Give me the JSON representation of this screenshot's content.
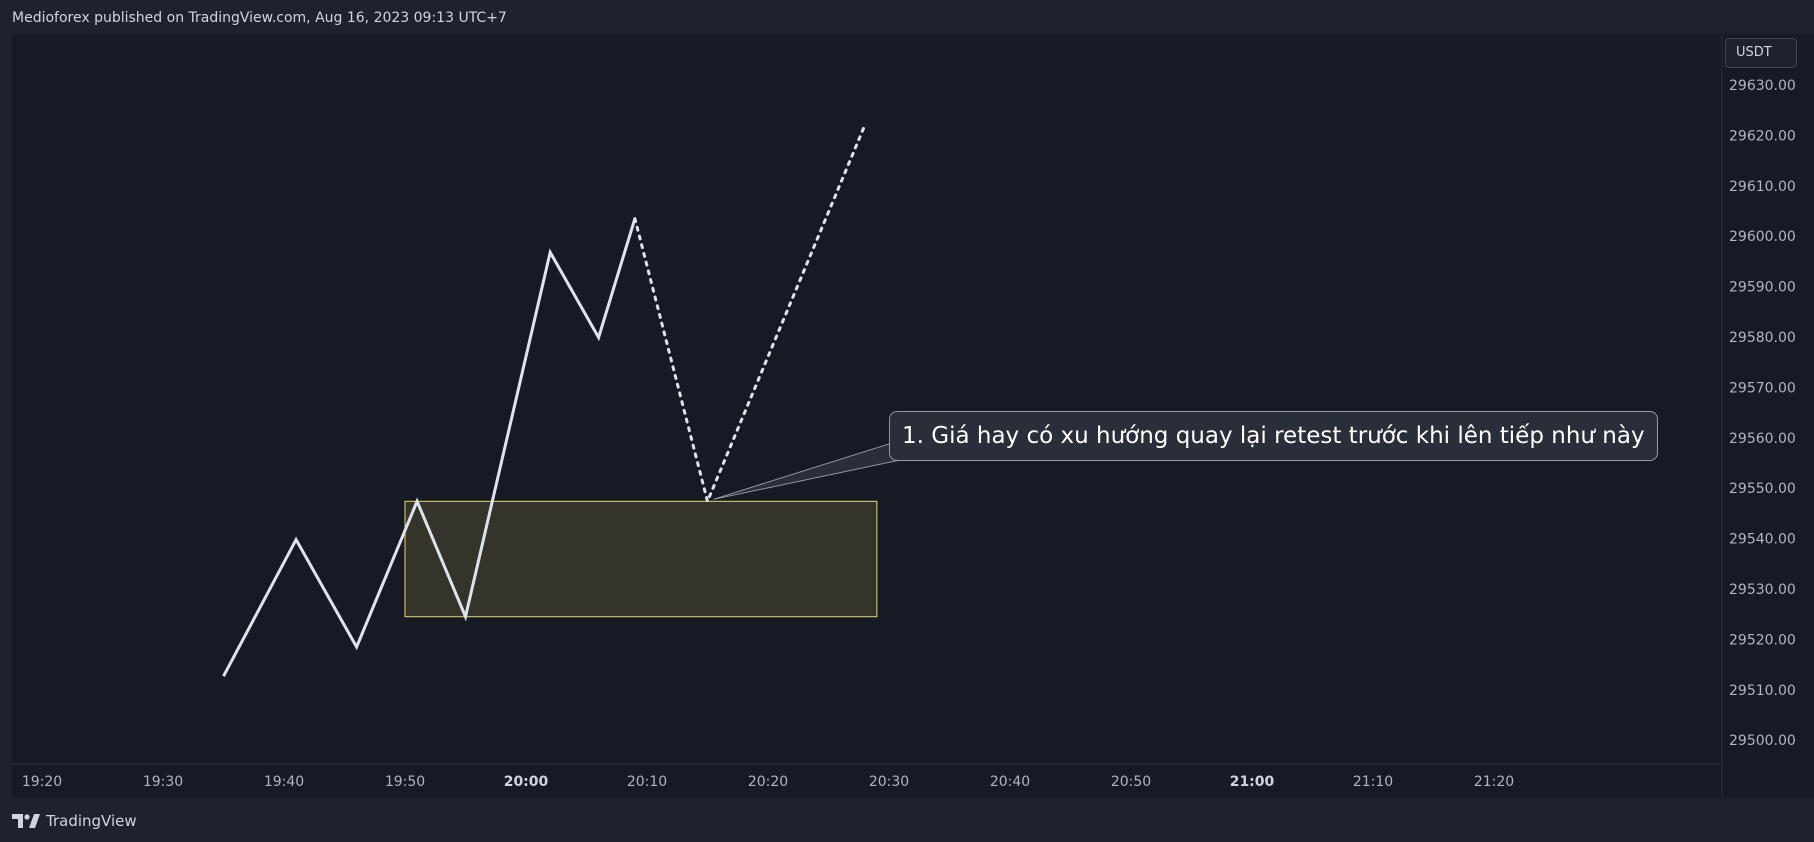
{
  "header": {
    "published_text": "Medioforex published on TradingView.com, Aug 16, 2023 09:13 UTC+7"
  },
  "footer": {
    "brand_icon": "tradingview-logo-icon",
    "brand_label": "TradingView"
  },
  "colors": {
    "background": "#1e222d",
    "plot_background": "#161a25",
    "price_line": "#e0e3eb",
    "zone_fill": "#3a3a2b",
    "zone_border": "#e3d96f",
    "callout_background": "#2a2e39"
  },
  "chart_data": {
    "type": "line",
    "currency": "USDT",
    "y_ticks": [
      "29630.00",
      "29620.00",
      "29610.00",
      "29600.00",
      "29590.00",
      "29580.00",
      "29570.00",
      "29560.00",
      "29550.00",
      "29540.00",
      "29530.00",
      "29520.00",
      "29510.00",
      "29500.00"
    ],
    "x_ticks": [
      {
        "label": "19:20",
        "bold": false
      },
      {
        "label": "19:30",
        "bold": false
      },
      {
        "label": "19:40",
        "bold": false
      },
      {
        "label": "19:50",
        "bold": false
      },
      {
        "label": "20:00",
        "bold": true
      },
      {
        "label": "20:10",
        "bold": false
      },
      {
        "label": "20:20",
        "bold": false
      },
      {
        "label": "20:30",
        "bold": false
      },
      {
        "label": "20:40",
        "bold": false
      },
      {
        "label": "20:50",
        "bold": false
      },
      {
        "label": "21:00",
        "bold": true
      },
      {
        "label": "21:10",
        "bold": false
      },
      {
        "label": "21:20",
        "bold": false
      }
    ],
    "series": [
      {
        "style": "solid",
        "points": [
          {
            "x": "19:35",
            "y": 29512.7
          },
          {
            "x": "19:41",
            "y": 29539.8
          },
          {
            "x": "19:46",
            "y": 29518.5
          },
          {
            "x": "19:51",
            "y": 29547.4
          },
          {
            "x": "19:55",
            "y": 29524.5
          },
          {
            "x": "20:02",
            "y": 29596.8
          },
          {
            "x": "20:06",
            "y": 29579.9
          },
          {
            "x": "20:09",
            "y": 29603.5
          }
        ]
      },
      {
        "style": "dotted",
        "points": [
          {
            "x": "20:09",
            "y": 29603.5
          },
          {
            "x": "20:15",
            "y": 29547.4
          },
          {
            "x": "20:28",
            "y": 29622.0
          }
        ]
      }
    ],
    "zones": [
      {
        "x_start": "19:50",
        "x_end": "20:29",
        "y_low": 29524.5,
        "y_high": 29547.4
      }
    ],
    "annotations": [
      {
        "text": "1. Giá hay có xu hướng quay lại retest trước khi lên tiếp như này",
        "target_x": "20:15",
        "target_y": 29547.4
      }
    ]
  }
}
